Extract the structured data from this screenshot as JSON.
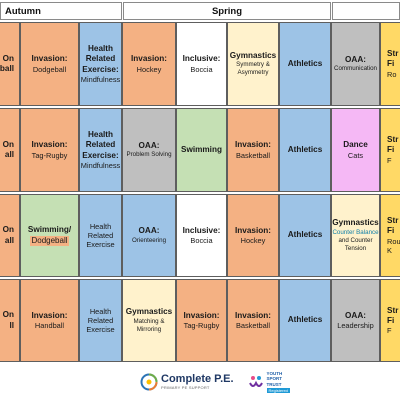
{
  "header": {
    "autumn": "Autumn",
    "spring": "Spring"
  },
  "rows": [
    [
      {
        "kind": "orange",
        "lines": [
          [
            "On",
            "t"
          ],
          [
            "ball",
            "t"
          ]
        ]
      },
      {
        "kind": "orange",
        "lines": [
          [
            "Invasion:",
            "t"
          ],
          [
            "Dodgeball",
            "s"
          ]
        ]
      },
      {
        "kind": "blue",
        "lines": [
          [
            "Health",
            "t"
          ],
          [
            "Related",
            "t"
          ],
          [
            "Exercise:",
            "t"
          ],
          [
            "Mindfulness",
            "s"
          ]
        ]
      },
      {
        "kind": "orange",
        "lines": [
          [
            "Invasion:",
            "t"
          ],
          [
            "Hockey",
            "s"
          ]
        ]
      },
      {
        "kind": "white",
        "lines": [
          [
            "Inclusive:",
            "t"
          ],
          [
            "Boccia",
            "s"
          ]
        ]
      },
      {
        "kind": "cream",
        "lines": [
          [
            "Gymnastics",
            "t"
          ],
          [
            "Symmetry &",
            "xs"
          ],
          [
            "Asymmetry",
            "xs"
          ]
        ]
      },
      {
        "kind": "blue",
        "lines": [
          [
            "Athletics",
            "t"
          ]
        ]
      },
      {
        "kind": "grey",
        "lines": [
          [
            "OAA:",
            "t"
          ],
          [
            "Communication",
            "xs"
          ]
        ]
      },
      {
        "kind": "yellow",
        "lines": [
          [
            "Str",
            "t"
          ],
          [
            "Fi",
            "t"
          ],
          [
            "Ro",
            "s"
          ]
        ]
      }
    ],
    [
      {
        "kind": "orange",
        "lines": [
          [
            "On",
            "t"
          ],
          [
            "all",
            "t"
          ]
        ]
      },
      {
        "kind": "orange",
        "lines": [
          [
            "Invasion:",
            "t"
          ],
          [
            "Tag-Rugby",
            "s"
          ]
        ]
      },
      {
        "kind": "blue",
        "lines": [
          [
            "Health",
            "t"
          ],
          [
            "Related",
            "t"
          ],
          [
            "Exercise:",
            "t"
          ],
          [
            "Mindfulness",
            "s"
          ]
        ]
      },
      {
        "kind": "grey",
        "lines": [
          [
            "OAA:",
            "t"
          ],
          [
            "Problem Solving",
            "xs"
          ]
        ]
      },
      {
        "kind": "green",
        "lines": [
          [
            "Swimming",
            "t"
          ]
        ]
      },
      {
        "kind": "orange",
        "lines": [
          [
            "Invasion:",
            "t"
          ],
          [
            "Basketball",
            "s"
          ]
        ]
      },
      {
        "kind": "blue",
        "lines": [
          [
            "Athletics",
            "t"
          ]
        ]
      },
      {
        "kind": "pink",
        "lines": [
          [
            "Dance",
            "t"
          ],
          [
            "Cats",
            "s"
          ]
        ]
      },
      {
        "kind": "yellow",
        "lines": [
          [
            "Str",
            "t"
          ],
          [
            "Fi",
            "t"
          ],
          [
            "F",
            "s"
          ]
        ]
      }
    ],
    [
      {
        "kind": "orange",
        "lines": [
          [
            "On",
            "t"
          ],
          [
            "all",
            "t"
          ]
        ]
      },
      {
        "kind": "green",
        "lines": [
          [
            "Swimming/",
            "t"
          ],
          [
            "Dodgeball",
            "sw"
          ]
        ]
      },
      {
        "kind": "blue",
        "lines": [
          [
            "Health",
            "s"
          ],
          [
            "Related",
            "s"
          ],
          [
            "Exercise",
            "s"
          ]
        ]
      },
      {
        "kind": "blue",
        "lines": [
          [
            "OAA:",
            "t"
          ],
          [
            "Orienteering",
            "xs"
          ]
        ]
      },
      {
        "kind": "white",
        "lines": [
          [
            "Inclusive:",
            "t"
          ],
          [
            "Boccia",
            "s"
          ]
        ]
      },
      {
        "kind": "orange",
        "lines": [
          [
            "Invasion:",
            "t"
          ],
          [
            "Hockey",
            "s"
          ]
        ]
      },
      {
        "kind": "blue",
        "lines": [
          [
            "Athletics",
            "t"
          ]
        ]
      },
      {
        "kind": "cream",
        "lines": [
          [
            "Gymnastics",
            "t"
          ],
          [
            "Counter Balance",
            "xs cyan"
          ],
          [
            "and Counter",
            "xs"
          ],
          [
            "Tension",
            "xs"
          ]
        ]
      },
      {
        "kind": "yellow",
        "lines": [
          [
            "Str",
            "t"
          ],
          [
            "Fi",
            "t"
          ],
          [
            "Rou",
            "s"
          ],
          [
            "K",
            "s"
          ]
        ]
      }
    ],
    [
      {
        "kind": "orange",
        "lines": [
          [
            "On",
            "t"
          ],
          [
            "ll",
            "t"
          ]
        ]
      },
      {
        "kind": "orange",
        "lines": [
          [
            "Invasion:",
            "t"
          ],
          [
            "Handball",
            "s"
          ]
        ]
      },
      {
        "kind": "blue",
        "lines": [
          [
            "Health",
            "s"
          ],
          [
            "Related",
            "s"
          ],
          [
            "Exercise",
            "s"
          ]
        ]
      },
      {
        "kind": "cream",
        "lines": [
          [
            "Gymnastics",
            "t"
          ],
          [
            "Matching &",
            "xs"
          ],
          [
            "Mirroring",
            "xs"
          ]
        ]
      },
      {
        "kind": "orange",
        "lines": [
          [
            "Invasion:",
            "t"
          ],
          [
            "Tag-Rugby",
            "s"
          ]
        ]
      },
      {
        "kind": "orange",
        "lines": [
          [
            "Invasion:",
            "t"
          ],
          [
            "Basketball",
            "s"
          ]
        ]
      },
      {
        "kind": "blue",
        "lines": [
          [
            "Athletics",
            "t"
          ]
        ]
      },
      {
        "kind": "grey",
        "lines": [
          [
            "OAA:",
            "t"
          ],
          [
            "Leadership",
            "s"
          ]
        ]
      },
      {
        "kind": "yellow",
        "lines": [
          [
            "Str",
            "t"
          ],
          [
            "Fi",
            "t"
          ],
          [
            "F",
            "s"
          ]
        ]
      }
    ]
  ],
  "logos": {
    "complete_pe": "Complete P.E.",
    "complete_pe_tag": "PRIMARY PE SUPPORT",
    "yst_line1": "YOUTH",
    "yst_line2": "SPORT",
    "yst_line3": "TRUST",
    "yst_badge": "Registered"
  }
}
